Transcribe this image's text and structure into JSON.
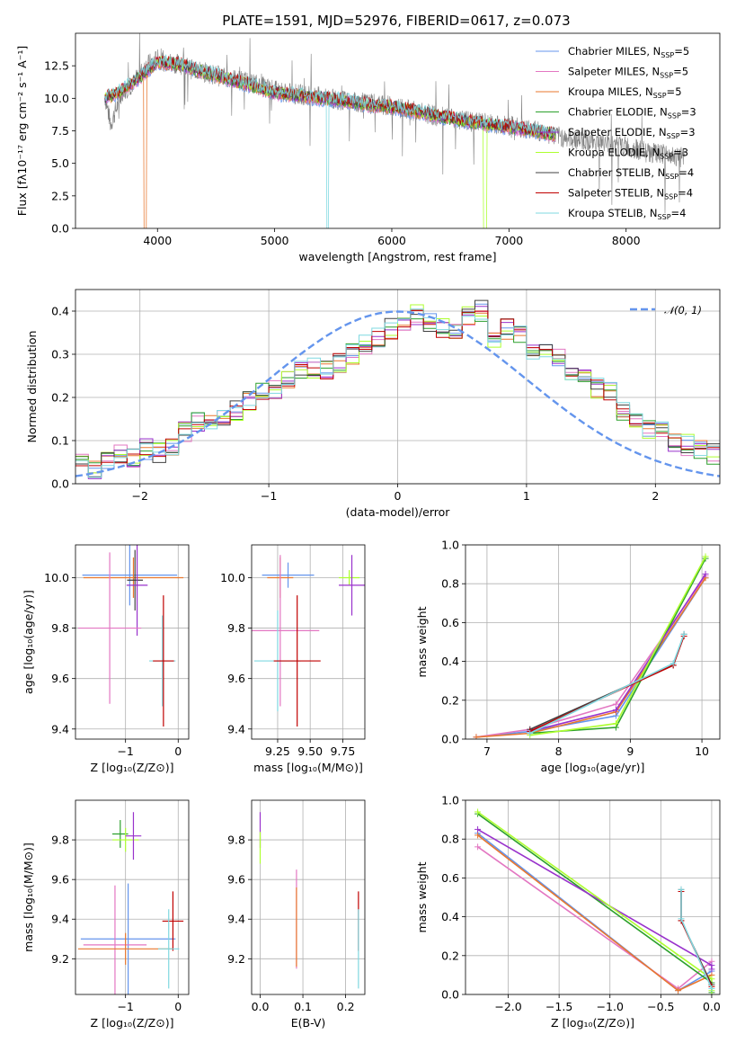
{
  "figure": {
    "title": "PLATE=1591, MJD=52976, FIBERID=0617, z=0.073"
  },
  "models": [
    {
      "name": "Chabrier MILES",
      "nssp": "5",
      "color": "#6495ED",
      "abbr": "ch-mi"
    },
    {
      "name": "Salpeter MILES",
      "nssp": "5",
      "color": "#E377C2",
      "abbr": "sa-mi"
    },
    {
      "name": "Kroupa MILES",
      "nssp": "5",
      "color": "#E8772E",
      "abbr": "kr-mi"
    },
    {
      "name": "Chabrier ELODIE",
      "nssp": "3",
      "color": "#2CA02C",
      "abbr": "ch-el"
    },
    {
      "name": "Salpeter ELODIE",
      "nssp": "3",
      "color": "#9932CC",
      "abbr": "sa-el"
    },
    {
      "name": "Kroupa ELODIE",
      "nssp": "3",
      "color": "#ADFF2F",
      "abbr": "kr-el"
    },
    {
      "name": "Chabrier STELIB",
      "nssp": "4",
      "color": "#404040",
      "abbr": "ch-st"
    },
    {
      "name": "Salpeter STELIB",
      "nssp": "4",
      "color": "#C00000",
      "abbr": "sa-st"
    },
    {
      "name": "Kroupa STELIB",
      "nssp": "4",
      "color": "#7FD8E0",
      "abbr": "kr-st"
    }
  ],
  "chart_data": [
    {
      "id": "spectrum",
      "type": "line",
      "xlabel": "wavelength [Angstrom, rest frame]",
      "ylabel": "Flux [fλ10⁻¹⁷ erg cm⁻² s⁻¹ A⁻¹]",
      "xlim": [
        3300,
        8800
      ],
      "ylim": [
        0,
        15
      ],
      "xticks": [
        4000,
        5000,
        6000,
        7000,
        8000
      ],
      "yticks": [
        0.0,
        2.5,
        5.0,
        7.5,
        10.0,
        12.5
      ],
      "legend_position": "upper right",
      "data_line": {
        "color": "#808080",
        "x": [
          3550,
          3600,
          3700,
          3800,
          3900,
          4000,
          4100,
          4200,
          4300,
          4400,
          4600,
          4800,
          5000,
          5200,
          5400,
          5600,
          5800,
          6000,
          6200,
          6400,
          6600,
          6800,
          7000,
          7200,
          7400,
          7600,
          7800,
          8000,
          8200,
          8400,
          8500
        ],
        "y": [
          10.2,
          8.0,
          10.5,
          11.2,
          12.5,
          13.0,
          12.8,
          12.6,
          12.2,
          12.0,
          11.6,
          11.2,
          10.6,
          10.3,
          10.1,
          9.8,
          9.6,
          9.4,
          9.0,
          8.6,
          8.3,
          8.1,
          7.9,
          7.6,
          7.1,
          6.8,
          6.6,
          6.3,
          5.8,
          5.6,
          5.4
        ]
      },
      "model_x": [
        3550,
        3700,
        3900,
        4000,
        4200,
        4400,
        4600,
        4800,
        5000,
        5200,
        5400,
        5600,
        5800,
        6000,
        6200,
        6400,
        6600,
        6800,
        7000,
        7200,
        7400
      ],
      "model_y": [
        10.0,
        10.6,
        12.0,
        12.8,
        12.6,
        12.0,
        11.5,
        11.0,
        10.4,
        10.2,
        10.0,
        9.8,
        9.5,
        9.3,
        9.0,
        8.6,
        8.3,
        8.0,
        7.8,
        7.5,
        7.2
      ]
    },
    {
      "id": "residuals",
      "type": "histogram",
      "xlabel": "(data-model)/error",
      "ylabel": "Normed distribution",
      "xlim": [
        -2.5,
        2.5
      ],
      "ylim": [
        0,
        0.45
      ],
      "xticks": [
        -2,
        -1,
        0,
        1,
        2
      ],
      "yticks": [
        0.0,
        0.1,
        0.2,
        0.3,
        0.4
      ],
      "legend_label": "𝒩(0, 1)",
      "gauss_color": "#6495ED",
      "bin_width": 0.1,
      "base_hist": [
        0.06,
        0.03,
        0.05,
        0.07,
        0.06,
        0.08,
        0.07,
        0.09,
        0.12,
        0.14,
        0.15,
        0.16,
        0.17,
        0.19,
        0.22,
        0.22,
        0.24,
        0.26,
        0.27,
        0.26,
        0.28,
        0.3,
        0.32,
        0.34,
        0.36,
        0.38,
        0.39,
        0.37,
        0.36,
        0.35,
        0.39,
        0.4,
        0.33,
        0.36,
        0.34,
        0.31,
        0.3,
        0.29,
        0.26,
        0.25,
        0.22,
        0.21,
        0.17,
        0.14,
        0.13,
        0.12,
        0.1,
        0.09,
        0.08,
        0.07
      ]
    },
    {
      "id": "age-vs-Z",
      "type": "errorbar",
      "xlabel": "Z [log₁₀(Z/Z⊙)]",
      "ylabel": "age  [log₁₀(age/yr)]",
      "xlim": [
        -1.95,
        0.2
      ],
      "ylim": [
        9.36,
        10.13
      ],
      "xticks": [
        -1,
        0
      ],
      "yticks": [
        9.4,
        9.6,
        9.8,
        10.0
      ],
      "points": [
        {
          "m": 0,
          "x": -0.92,
          "y": 10.01,
          "xerr": 0.9,
          "yerr": 0.12
        },
        {
          "m": 2,
          "x": -0.85,
          "y": 10.0,
          "xerr": 0.95,
          "yerr": 0.08
        },
        {
          "m": 6,
          "x": -0.82,
          "y": 9.99,
          "xerr": 0.15,
          "yerr": 0.12
        },
        {
          "m": 4,
          "x": -0.78,
          "y": 9.97,
          "xerr": 0.2,
          "yerr": 0.2
        },
        {
          "m": 1,
          "x": -1.3,
          "y": 9.8,
          "xerr": 0.6,
          "yerr": 0.3
        },
        {
          "m": 8,
          "x": -0.3,
          "y": 9.67,
          "xerr": 0.25,
          "yerr": 0.18
        },
        {
          "m": 7,
          "x": -0.28,
          "y": 9.67,
          "xerr": 0.2,
          "yerr": 0.26
        }
      ]
    },
    {
      "id": "age-vs-mass",
      "type": "errorbar",
      "xlabel": "mass [log₁₀(M/M⊙)]",
      "ylabel": "",
      "xlim": [
        9.05,
        9.92
      ],
      "ylim": [
        9.36,
        10.13
      ],
      "xticks": [
        9.25,
        9.5,
        9.75
      ],
      "yticks": [
        9.4,
        9.6,
        9.8,
        10.0
      ],
      "points": [
        {
          "m": 0,
          "x": 9.33,
          "y": 10.01,
          "xerr": 0.2,
          "yerr": 0.05
        },
        {
          "m": 2,
          "x": 9.27,
          "y": 10.0,
          "xerr": 0.1,
          "yerr": 0.08
        },
        {
          "m": 5,
          "x": 9.8,
          "y": 10.0,
          "xerr": 0.08,
          "yerr": 0.03
        },
        {
          "m": 4,
          "x": 9.82,
          "y": 9.97,
          "xerr": 0.1,
          "yerr": 0.12
        },
        {
          "m": 1,
          "x": 9.27,
          "y": 9.79,
          "xerr": 0.3,
          "yerr": 0.3
        },
        {
          "m": 8,
          "x": 9.25,
          "y": 9.67,
          "xerr": 0.18,
          "yerr": 0.2
        },
        {
          "m": 7,
          "x": 9.4,
          "y": 9.67,
          "xerr": 0.18,
          "yerr": 0.26
        }
      ]
    },
    {
      "id": "weight-vs-age",
      "type": "line",
      "xlabel": "age  [log₁₀(age/yr)]",
      "ylabel": "mass weight",
      "xlim": [
        6.7,
        10.25
      ],
      "ylim": [
        0,
        1
      ],
      "xticks": [
        7,
        8,
        9,
        10
      ],
      "yticks": [
        0.0,
        0.2,
        0.4,
        0.6,
        0.8,
        1.0
      ],
      "series": [
        {
          "m": 0,
          "x": [
            6.85,
            7.6,
            8.8,
            10.05
          ],
          "y": [
            0.01,
            0.04,
            0.12,
            0.83
          ]
        },
        {
          "m": 1,
          "x": [
            6.85,
            7.6,
            8.8,
            10.05
          ],
          "y": [
            0.01,
            0.05,
            0.18,
            0.84
          ]
        },
        {
          "m": 2,
          "x": [
            6.85,
            7.6,
            8.8,
            10.05
          ],
          "y": [
            0.01,
            0.03,
            0.14,
            0.83
          ]
        },
        {
          "m": 3,
          "x": [
            7.6,
            8.8,
            10.05
          ],
          "y": [
            0.03,
            0.06,
            0.93
          ]
        },
        {
          "m": 4,
          "x": [
            7.6,
            8.8,
            10.05
          ],
          "y": [
            0.04,
            0.15,
            0.85
          ]
        },
        {
          "m": 5,
          "x": [
            7.6,
            8.8,
            10.05
          ],
          "y": [
            0.02,
            0.08,
            0.94
          ]
        },
        {
          "m": 6,
          "x": [
            7.6,
            9.6,
            9.75
          ],
          "y": [
            0.05,
            0.38,
            0.54
          ]
        },
        {
          "m": 7,
          "x": [
            7.6,
            9.6,
            9.75
          ],
          "y": [
            0.04,
            0.38,
            0.53
          ]
        },
        {
          "m": 8,
          "x": [
            7.6,
            9.6,
            9.75
          ],
          "y": [
            0.03,
            0.39,
            0.54
          ]
        }
      ]
    },
    {
      "id": "mass-vs-Z",
      "type": "errorbar",
      "xlabel": "Z [log₁₀(Z/Z⊙)]",
      "ylabel": "mass [log₁₀(M/M⊙)]",
      "xlim": [
        -1.95,
        0.2
      ],
      "ylim": [
        9.02,
        10.0
      ],
      "xticks": [
        -1,
        0
      ],
      "yticks": [
        9.2,
        9.4,
        9.6,
        9.8
      ],
      "points": [
        {
          "m": 3,
          "x": -1.1,
          "y": 9.83,
          "xerr": 0.15,
          "yerr": 0.07
        },
        {
          "m": 5,
          "x": -1.0,
          "y": 9.8,
          "xerr": 0.25,
          "yerr": 0.06
        },
        {
          "m": 4,
          "x": -0.85,
          "y": 9.82,
          "xerr": 0.15,
          "yerr": 0.12
        },
        {
          "m": 0,
          "x": -0.95,
          "y": 9.3,
          "xerr": 0.9,
          "yerr": 0.28
        },
        {
          "m": 1,
          "x": -1.2,
          "y": 9.27,
          "xerr": 0.6,
          "yerr": 0.3
        },
        {
          "m": 2,
          "x": -1.0,
          "y": 9.25,
          "xerr": 0.9,
          "yerr": 0.08
        },
        {
          "m": 7,
          "x": -0.1,
          "y": 9.39,
          "xerr": 0.2,
          "yerr": 0.15
        },
        {
          "m": 8,
          "x": -0.18,
          "y": 9.25,
          "xerr": 0.2,
          "yerr": 0.2
        }
      ]
    },
    {
      "id": "mass-vs-ebv",
      "type": "errorbar",
      "xlabel": "E(B-V)",
      "ylabel": "",
      "xlim": [
        -0.02,
        0.245
      ],
      "ylim": [
        9.02,
        10.0
      ],
      "xticks": [
        0.0,
        0.1,
        0.2
      ],
      "yticks": [
        9.2,
        9.4,
        9.6,
        9.8
      ],
      "points": [
        {
          "m": 4,
          "x": 0.0,
          "y": 9.85,
          "xerr": 0,
          "yerr": 0.09
        },
        {
          "m": 5,
          "x": 0.0,
          "y": 9.76,
          "xerr": 0,
          "yerr": 0.08
        },
        {
          "m": 1,
          "x": 0.085,
          "y": 9.4,
          "xerr": 0,
          "yerr": 0.25
        },
        {
          "m": 2,
          "x": 0.085,
          "y": 9.36,
          "xerr": 0,
          "yerr": 0.2
        },
        {
          "m": 7,
          "x": 0.23,
          "y": 9.39,
          "xerr": 0,
          "yerr": 0.15
        },
        {
          "m": 8,
          "x": 0.23,
          "y": 9.25,
          "xerr": 0,
          "yerr": 0.2
        }
      ]
    },
    {
      "id": "weight-vs-Z",
      "type": "line",
      "xlabel": "Z [log₁₀(Z/Z⊙)]",
      "ylabel": "mass weight",
      "xlim": [
        -2.42,
        0.08
      ],
      "ylim": [
        0,
        1
      ],
      "xticks": [
        -2.0,
        -1.5,
        -1.0,
        -0.5,
        0.0
      ],
      "yticks": [
        0.0,
        0.2,
        0.4,
        0.6,
        0.8,
        1.0
      ],
      "series": [
        {
          "m": 0,
          "x": [
            -2.3,
            -0.33,
            0.0
          ],
          "y": [
            0.83,
            0.02,
            0.12
          ]
        },
        {
          "m": 1,
          "x": [
            -2.3,
            -0.33,
            0.0
          ],
          "y": [
            0.76,
            0.03,
            0.17
          ]
        },
        {
          "m": 2,
          "x": [
            -2.3,
            -0.33,
            0.0
          ],
          "y": [
            0.82,
            0.02,
            0.1
          ]
        },
        {
          "m": 3,
          "x": [
            -2.3,
            0.0,
            0.0
          ],
          "y": [
            0.93,
            0.06,
            0.01
          ]
        },
        {
          "m": 4,
          "x": [
            -2.3,
            0.0,
            0.0
          ],
          "y": [
            0.85,
            0.15,
            0.13
          ]
        },
        {
          "m": 5,
          "x": [
            -2.3,
            0.0,
            0.0
          ],
          "y": [
            0.94,
            0.08,
            0.02
          ]
        },
        {
          "m": 6,
          "x": [
            -0.3,
            -0.3,
            0.0
          ],
          "y": [
            0.54,
            0.38,
            0.05
          ]
        },
        {
          "m": 7,
          "x": [
            -0.3,
            -0.3,
            0.0
          ],
          "y": [
            0.53,
            0.38,
            0.04
          ]
        },
        {
          "m": 8,
          "x": [
            -0.3,
            -0.3,
            0.0
          ],
          "y": [
            0.54,
            0.39,
            0.03
          ]
        }
      ]
    }
  ]
}
